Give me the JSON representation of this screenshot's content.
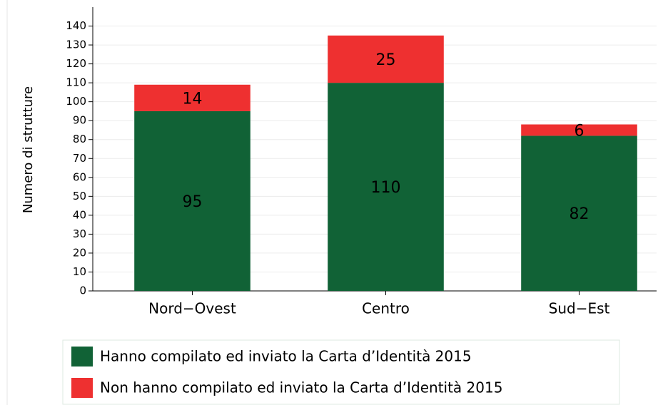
{
  "chart_data": {
    "type": "stacked_bar",
    "y_label": "Numero di strutture",
    "categories": [
      "Nord−Ovest",
      "Centro",
      "Sud−Est"
    ],
    "series": [
      {
        "name": "Hanno compilato ed inviato la Carta d’Identità 2015",
        "color": "#116236",
        "values": [
          95,
          110,
          82
        ]
      },
      {
        "name": "Non hanno compilato ed inviato la Carta d’Identità 2015",
        "color": "#ee3030",
        "values": [
          14,
          25,
          6
        ]
      }
    ],
    "ylim": [
      0,
      150
    ],
    "yticks": [
      0,
      10,
      20,
      30,
      40,
      50,
      60,
      70,
      80,
      90,
      100,
      110,
      120,
      130,
      140
    ],
    "grid": true,
    "legend": "bottom"
  }
}
